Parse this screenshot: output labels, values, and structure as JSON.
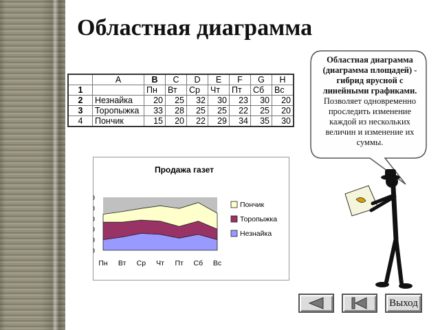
{
  "title": "Областная диаграмма",
  "bubble": {
    "bold_text": "Областная диаграмма (диаграмма площадей) - гибрид ярусной с линейными графиками.",
    "normal_text": "Позволяет одновременно проследить изменение каждой из нескольких величин и изменение их суммы."
  },
  "sheet": {
    "column_headers": [
      "",
      "A",
      "B",
      "C",
      "D",
      "E",
      "F",
      "G",
      "H"
    ],
    "rows": [
      {
        "num": "1",
        "name": "",
        "values": [
          "Пн",
          "Вт",
          "Ср",
          "Чт",
          "Пт",
          "Сб",
          "Вс"
        ]
      },
      {
        "num": "2",
        "name": "Незнайка",
        "values": [
          "20",
          "25",
          "32",
          "30",
          "23",
          "30",
          "20"
        ]
      },
      {
        "num": "3",
        "name": "Торопыжка",
        "values": [
          "33",
          "28",
          "25",
          "25",
          "22",
          "25",
          "20"
        ]
      },
      {
        "num": "4",
        "name": "Пончик",
        "values": [
          "15",
          "20",
          "22",
          "29",
          "34",
          "35",
          "30"
        ]
      }
    ]
  },
  "chart_data": {
    "type": "area",
    "stacked": true,
    "title": "Продажа газет",
    "categories": [
      "Пн",
      "Вт",
      "Ср",
      "Чт",
      "Пт",
      "Сб",
      "Вс"
    ],
    "ylim": [
      0,
      100
    ],
    "yticks": [
      "0",
      "20",
      "40",
      "60",
      "80",
      "100"
    ],
    "series": [
      {
        "name": "Незнайка",
        "values": [
          20,
          25,
          32,
          30,
          23,
          30,
          20
        ],
        "color": "#9999ff"
      },
      {
        "name": "Торопыжка",
        "values": [
          33,
          28,
          25,
          25,
          22,
          25,
          20
        ],
        "color": "#993366"
      },
      {
        "name": "Пончик",
        "values": [
          15,
          20,
          22,
          29,
          34,
          35,
          30
        ],
        "color": "#ffffcc"
      }
    ],
    "legend_order": [
      "Пончик",
      "Торопыжка",
      "Незнайка"
    ],
    "legend_position": "right",
    "plot_background": "#c0c0c0"
  },
  "buttons": {
    "exit_label": "Выход"
  }
}
